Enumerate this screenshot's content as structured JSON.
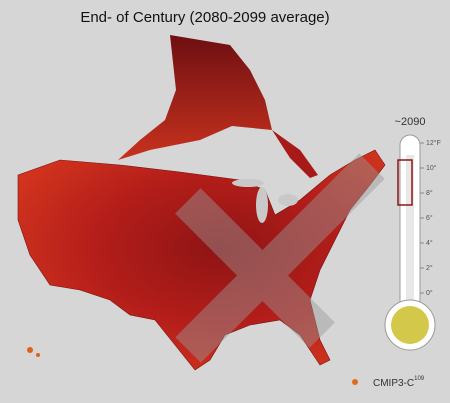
{
  "title": "End- of Century (2080-2099 average)",
  "thermometer": {
    "year_label": "~2090",
    "scale_labels": [
      "12°F",
      "10°",
      "8°",
      "6°",
      "4°",
      "2°",
      "0°"
    ]
  },
  "credit": {
    "text": "CMIP3-C",
    "superscript": "109"
  }
}
